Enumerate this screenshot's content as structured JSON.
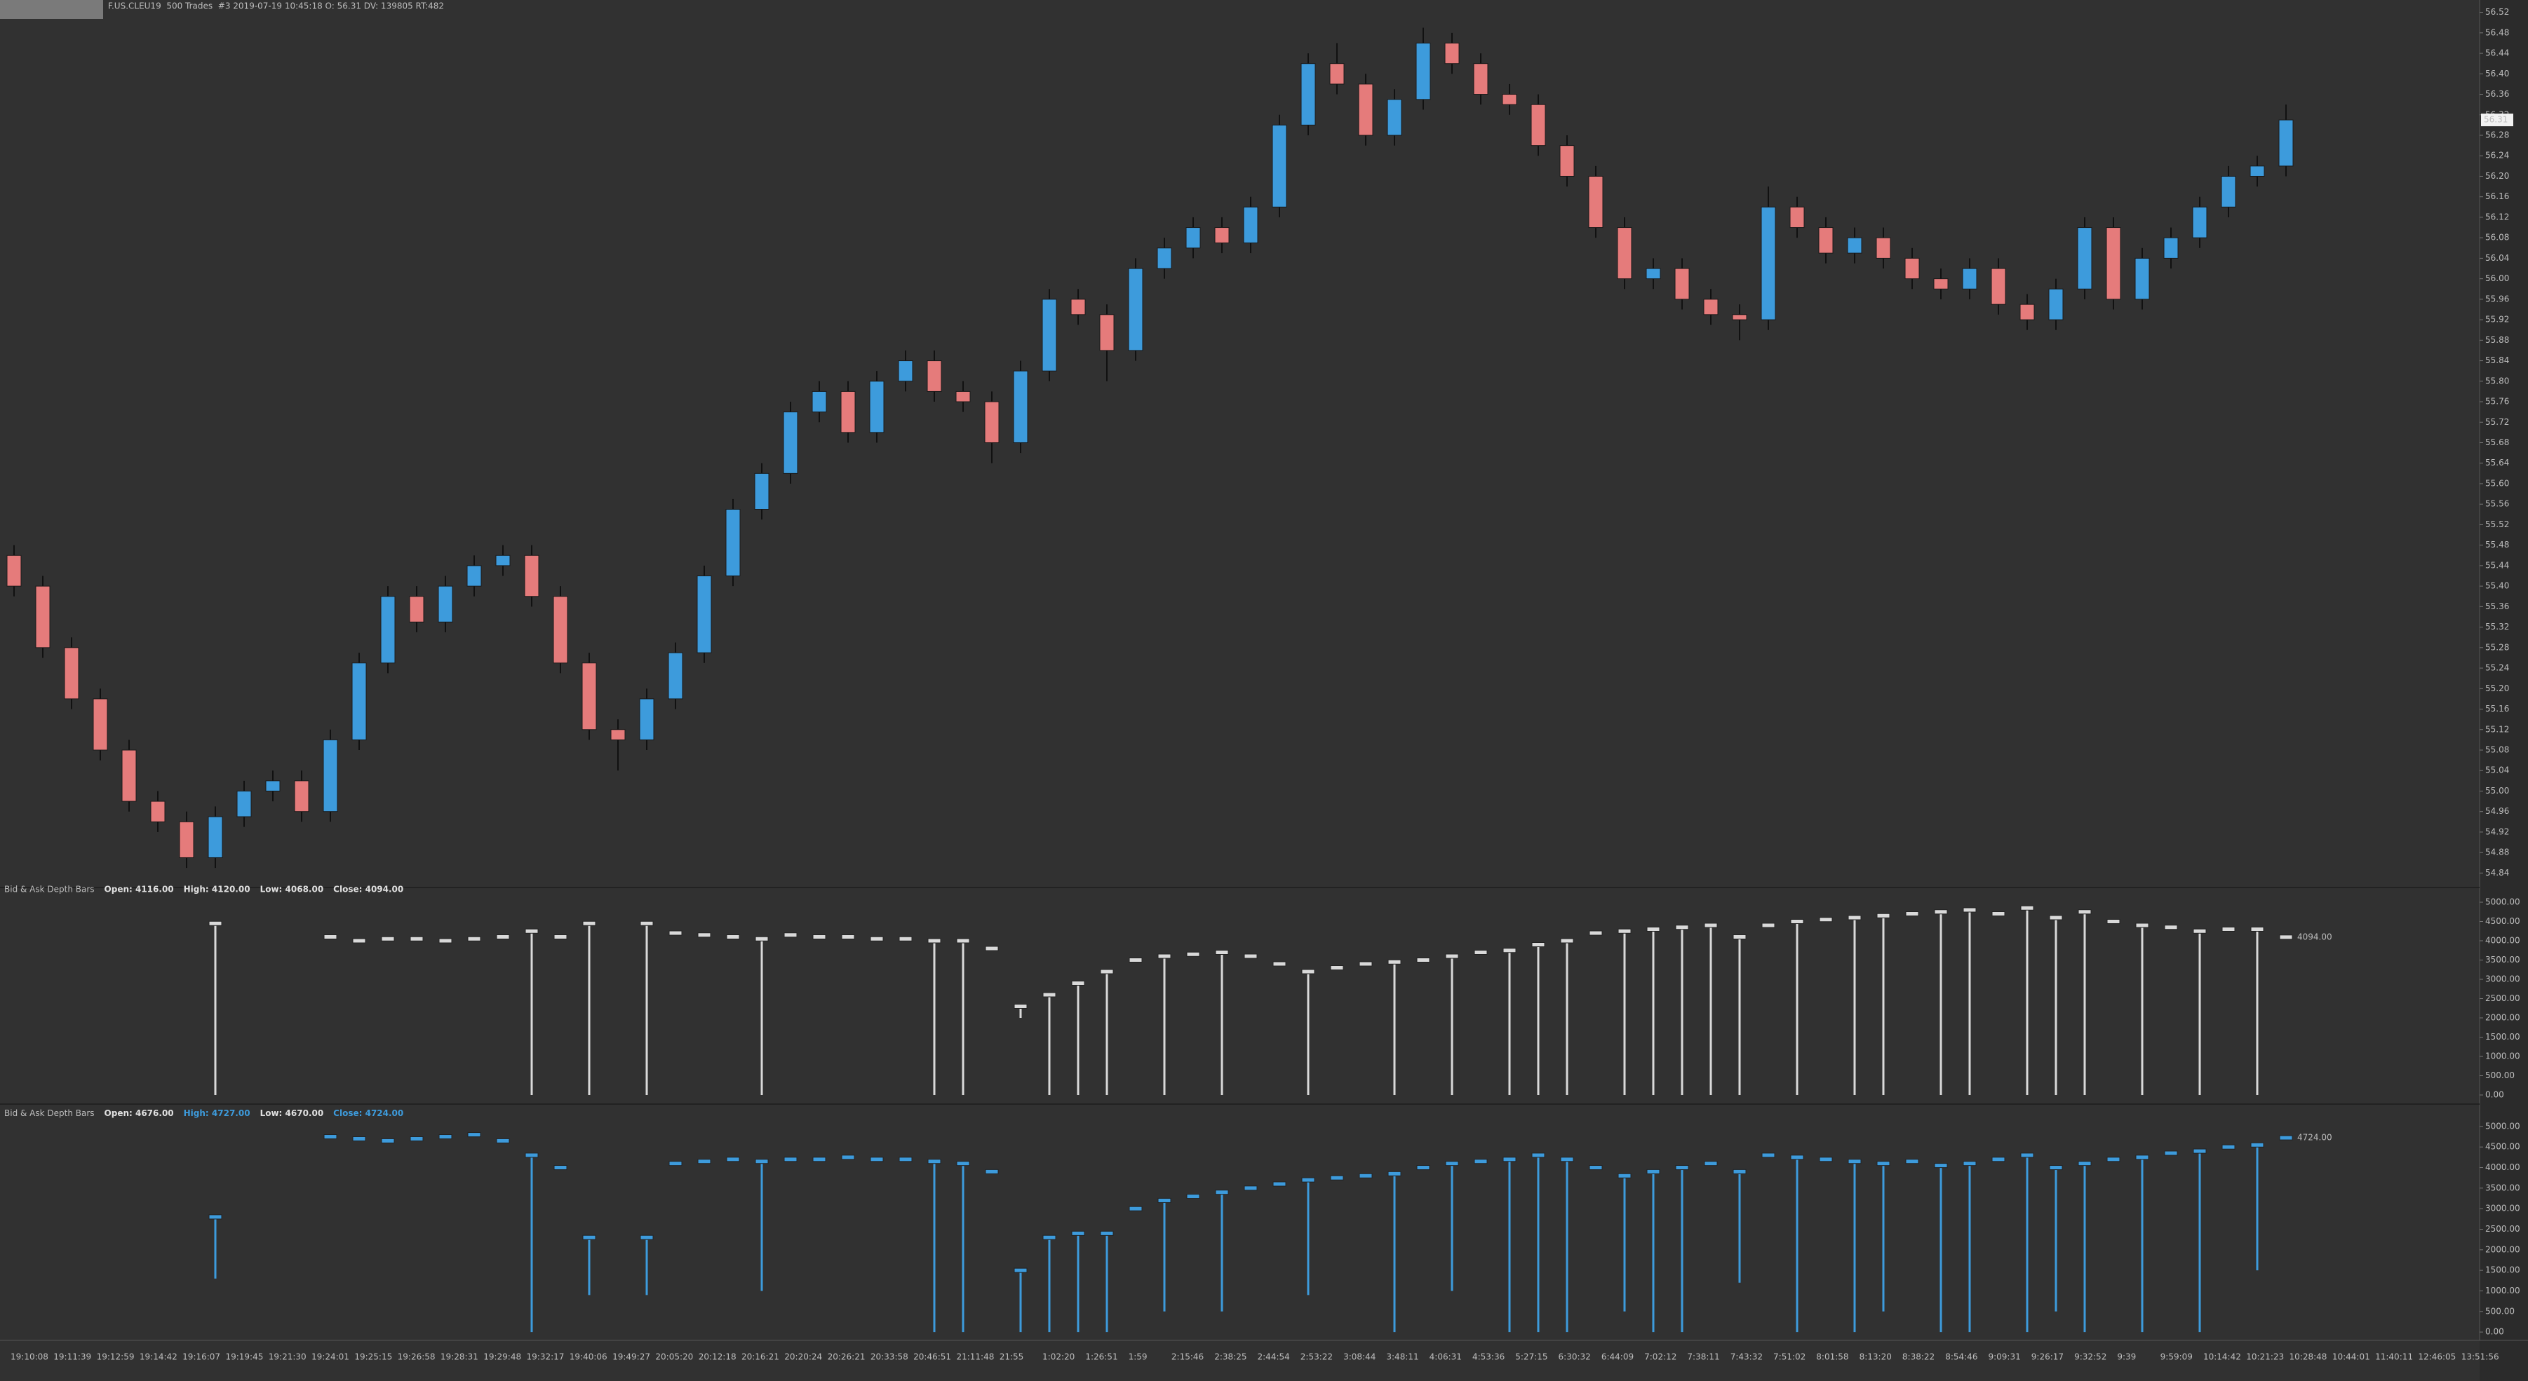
{
  "chart_data": [
    {
      "type": "candlestick",
      "title": "F.US.CLEU19  500 Trades  #3 2019-07-19 10:45:18 O: 56.31 DV: 139805 RT:482",
      "up_color": "#3d9bdc",
      "down_color": "#e57b7b",
      "last_label": "56.31",
      "ylim": [
        54.82,
        56.54
      ],
      "yticks": [
        54.84,
        54.88,
        54.92,
        54.96,
        {
          "value": 55,
          "label": "55.00"
        },
        55.04,
        55.08,
        55.12,
        55.16,
        {
          "value": 55.2,
          "label": "55.20"
        },
        55.24,
        55.28,
        55.32,
        55.36,
        {
          "value": 55.4,
          "label": "55.40"
        },
        55.44,
        55.48,
        55.52,
        55.56,
        {
          "value": 55.6,
          "label": "55.60"
        },
        55.64,
        55.68,
        55.72,
        55.76,
        {
          "value": 55.8,
          "label": "55.80"
        },
        55.84,
        55.88,
        55.92,
        55.96,
        {
          "value": 56,
          "label": "56.00"
        },
        56.04,
        56.08,
        56.12,
        56.16,
        {
          "value": 56.2,
          "label": "56.20"
        },
        56.24,
        56.28,
        56.32,
        56.36,
        {
          "value": 56.4,
          "label": "56.40"
        },
        56.44,
        56.48,
        56.52
      ],
      "open": [
        55.46,
        55.4,
        55.28,
        55.18,
        55.08,
        54.98,
        54.94,
        54.87,
        54.95,
        55.0,
        55.02,
        54.96,
        55.1,
        55.25,
        55.38,
        55.33,
        55.4,
        55.44,
        55.46,
        55.38,
        55.25,
        55.12,
        55.1,
        55.18,
        55.27,
        55.42,
        55.55,
        55.62,
        55.74,
        55.78,
        55.7,
        55.8,
        55.84,
        55.78,
        55.76,
        55.68,
        55.82,
        55.96,
        55.93,
        55.86,
        56.02,
        56.06,
        56.1,
        56.07,
        56.14,
        56.3,
        56.42,
        56.38,
        56.28,
        56.35,
        56.46,
        56.42,
        56.36,
        56.34,
        56.26,
        56.2,
        56.1,
        56.0,
        56.02,
        55.96,
        55.93,
        55.92,
        56.14,
        56.1,
        56.05,
        56.08,
        56.04,
        56.0,
        55.98,
        56.02,
        55.95,
        55.92,
        55.98,
        56.1,
        55.96,
        56.04,
        56.08,
        56.14,
        56.2,
        56.22
      ],
      "high": [
        55.48,
        55.42,
        55.3,
        55.2,
        55.1,
        55.0,
        54.96,
        54.97,
        55.02,
        55.04,
        55.04,
        55.12,
        55.27,
        55.4,
        55.4,
        55.42,
        55.46,
        55.48,
        55.48,
        55.4,
        55.27,
        55.14,
        55.2,
        55.29,
        55.44,
        55.57,
        55.64,
        55.76,
        55.8,
        55.8,
        55.82,
        55.86,
        55.86,
        55.8,
        55.78,
        55.84,
        55.98,
        55.98,
        55.95,
        56.04,
        56.08,
        56.12,
        56.12,
        56.16,
        56.32,
        56.44,
        56.46,
        56.4,
        56.37,
        56.49,
        56.48,
        56.44,
        56.38,
        56.36,
        56.28,
        56.22,
        56.12,
        56.04,
        56.04,
        55.98,
        55.95,
        56.18,
        56.16,
        56.12,
        56.1,
        56.1,
        56.06,
        56.02,
        56.04,
        56.04,
        55.97,
        56.0,
        56.12,
        56.12,
        56.06,
        56.1,
        56.16,
        56.22,
        56.24,
        56.34
      ],
      "low": [
        55.38,
        55.26,
        55.16,
        55.06,
        54.96,
        54.92,
        54.85,
        54.85,
        54.93,
        54.98,
        54.94,
        54.94,
        55.08,
        55.23,
        55.31,
        55.31,
        55.38,
        55.42,
        55.36,
        55.23,
        55.1,
        55.04,
        55.08,
        55.16,
        55.25,
        55.4,
        55.53,
        55.6,
        55.72,
        55.68,
        55.68,
        55.78,
        55.76,
        55.74,
        55.64,
        55.66,
        55.8,
        55.91,
        55.8,
        55.84,
        56.0,
        56.04,
        56.05,
        56.05,
        56.12,
        56.28,
        56.36,
        56.26,
        56.26,
        56.33,
        56.4,
        56.34,
        56.32,
        56.24,
        56.18,
        56.08,
        55.98,
        55.98,
        55.94,
        55.91,
        55.88,
        55.9,
        56.08,
        56.03,
        56.03,
        56.02,
        55.98,
        55.96,
        55.96,
        55.93,
        55.9,
        55.9,
        55.96,
        55.94,
        55.94,
        56.02,
        56.06,
        56.12,
        56.18,
        56.2
      ],
      "close": [
        55.4,
        55.28,
        55.18,
        55.08,
        54.98,
        54.94,
        54.87,
        54.95,
        55.0,
        55.02,
        54.96,
        55.1,
        55.25,
        55.38,
        55.33,
        55.4,
        55.44,
        55.46,
        55.38,
        55.25,
        55.12,
        55.1,
        55.18,
        55.27,
        55.42,
        55.55,
        55.62,
        55.74,
        55.78,
        55.7,
        55.8,
        55.84,
        55.78,
        55.76,
        55.68,
        55.82,
        55.96,
        55.93,
        55.86,
        56.02,
        56.06,
        56.1,
        56.07,
        56.14,
        56.3,
        56.42,
        56.38,
        56.28,
        56.35,
        56.46,
        56.42,
        56.36,
        56.34,
        56.26,
        56.2,
        56.1,
        56.0,
        56.02,
        55.96,
        55.93,
        55.92,
        56.14,
        56.1,
        56.05,
        56.08,
        56.04,
        56.0,
        55.98,
        56.02,
        55.95,
        55.92,
        55.98,
        56.1,
        55.96,
        56.04,
        56.08,
        56.14,
        56.2,
        56.22,
        56.31
      ],
      "time_labels": [
        "19:10:08",
        "19:11:39",
        "19:12:59",
        "19:14:42",
        "19:16:07",
        "19:19:45",
        "19:21:30",
        "19:24:01",
        "19:25:15",
        "19:26:58",
        "19:28:31",
        "19:29:48",
        "19:32:17",
        "19:40:06",
        "19:49:27",
        "20:05:20",
        "20:12:18",
        "20:16:21",
        "20:20:24",
        "20:26:21",
        "20:33:58",
        "20:46:51",
        "21:11:48",
        "21:55",
        "1:02:20",
        "1:26:51",
        "1:59",
        "2:15:46",
        "2:38:25",
        "2:44:54",
        "2:53:22",
        "3:08:44",
        "3:48:11",
        "4:06:31",
        "4:53:36",
        "5:27:15",
        "6:30:32",
        "6:44:09",
        "7:02:12",
        "7:38:11",
        "7:43:32",
        "7:51:02",
        "8:01:58",
        "8:13:20",
        "8:38:22",
        "8:54:46",
        "9:09:31",
        "9:26:17",
        "9:32:52",
        "9:39",
        "9:59:09",
        "10:14:42",
        "10:21:23",
        "10:28:48",
        "10:44:01",
        "11:40:11",
        "12:46:05",
        "13:51:56"
      ]
    },
    {
      "type": "depth",
      "title": "Bid & Ask Depth Bars",
      "ohlc_labels": [
        "Open: 4116.00",
        "High: 4120.00",
        "Low: 4068.00",
        "Close: 4094.00"
      ],
      "color": "#d9d9d9",
      "last_label": "4094.00",
      "ylim": [
        -100,
        5100
      ],
      "yticks": [
        {
          "value": 0,
          "label": "0.00"
        },
        {
          "value": 500,
          "label": "500.00"
        },
        {
          "value": 1000,
          "label": "1000.00"
        },
        {
          "value": 1500,
          "label": "1500.00"
        },
        {
          "value": 2000,
          "label": "2000.00"
        },
        {
          "value": 2500,
          "label": "2500.00"
        },
        {
          "value": 3000,
          "label": "3000.00"
        },
        {
          "value": 3500,
          "label": "3500.00"
        },
        {
          "value": 4000,
          "label": "4000.00"
        },
        {
          "value": 4500,
          "label": "4500.00"
        },
        {
          "value": 5000,
          "label": "5000.00"
        }
      ],
      "values": [
        null,
        null,
        null,
        null,
        null,
        null,
        null,
        4450,
        null,
        null,
        null,
        4100,
        4000,
        4050,
        4050,
        4000,
        4050,
        4100,
        4250,
        4100,
        4450,
        null,
        4450,
        4200,
        4150,
        4100,
        4050,
        4150,
        4100,
        4100,
        4050,
        4050,
        4000,
        4000,
        3800,
        2300,
        2600,
        2900,
        3200,
        3500,
        3600,
        3650,
        3700,
        3600,
        3400,
        3200,
        3300,
        3400,
        3450,
        3500,
        3600,
        3700,
        3750,
        3900,
        4000,
        4200,
        4250,
        4300,
        4350,
        4400,
        4100,
        4400,
        4500,
        4550,
        4600,
        4650,
        4700,
        4750,
        4800,
        4700,
        4850,
        4600,
        4750,
        4500,
        4400,
        4350,
        4250,
        4300,
        4300,
        4094
      ],
      "lows": [
        null,
        null,
        null,
        null,
        null,
        null,
        null,
        0,
        null,
        null,
        null,
        4100,
        4000,
        4050,
        4050,
        4000,
        4050,
        4100,
        0,
        4100,
        0,
        null,
        0,
        4200,
        4150,
        4100,
        0,
        4150,
        4100,
        4100,
        4050,
        4050,
        0,
        0,
        3800,
        2000,
        0,
        0,
        0,
        3500,
        0,
        3650,
        0,
        3600,
        3400,
        0,
        3300,
        3400,
        0,
        3500,
        0,
        3700,
        0,
        0,
        0,
        4200,
        0,
        0,
        0,
        0,
        0,
        4400,
        0,
        4550,
        0,
        0,
        4700,
        0,
        0,
        4700,
        0,
        0,
        0,
        4500,
        0,
        4350,
        0,
        4300,
        0,
        4094
      ]
    },
    {
      "type": "depth",
      "title": "Bid & Ask Depth Bars",
      "ohlc_labels": [
        "Open: 4676.00",
        "High: 4727.00",
        "Low: 4670.00",
        "Close: 4724.00"
      ],
      "color": "#3d9bdc",
      "last_label": "4724.00",
      "ylim": [
        -100,
        5100
      ],
      "yticks": [
        {
          "value": 0,
          "label": "0.00"
        },
        {
          "value": 500,
          "label": "500.00"
        },
        {
          "value": 1000,
          "label": "1000.00"
        },
        {
          "value": 1500,
          "label": "1500.00"
        },
        {
          "value": 2000,
          "label": "2000.00"
        },
        {
          "value": 2500,
          "label": "2500.00"
        },
        {
          "value": 3000,
          "label": "3000.00"
        },
        {
          "value": 3500,
          "label": "3500.00"
        },
        {
          "value": 4000,
          "label": "4000.00"
        },
        {
          "value": 4500,
          "label": "4500.00"
        },
        {
          "value": 5000,
          "label": "5000.00"
        }
      ],
      "values": [
        null,
        null,
        null,
        null,
        null,
        null,
        null,
        2800,
        null,
        null,
        null,
        4750,
        4700,
        4650,
        4700,
        4750,
        4800,
        4650,
        4300,
        4000,
        2300,
        null,
        2300,
        4100,
        4150,
        4200,
        4150,
        4200,
        4200,
        4250,
        4200,
        4200,
        4150,
        4100,
        3900,
        1500,
        2300,
        2400,
        2400,
        3000,
        3200,
        3300,
        3400,
        3500,
        3600,
        3700,
        3750,
        3800,
        3850,
        4000,
        4100,
        4150,
        4200,
        4300,
        4200,
        4000,
        3800,
        3900,
        4000,
        4100,
        3900,
        4300,
        4250,
        4200,
        4150,
        4100,
        4150,
        4050,
        4100,
        4200,
        4300,
        4000,
        4100,
        4200,
        4250,
        4350,
        4400,
        4500,
        4550,
        4724
      ],
      "lows": [
        null,
        null,
        null,
        null,
        null,
        null,
        null,
        1300,
        null,
        null,
        null,
        4750,
        4700,
        4650,
        4700,
        4750,
        4800,
        4650,
        0,
        4000,
        900,
        null,
        900,
        4100,
        4150,
        4200,
        1000,
        4200,
        4200,
        4250,
        4200,
        4200,
        0,
        0,
        3900,
        0,
        0,
        0,
        0,
        3000,
        500,
        3300,
        500,
        3500,
        3600,
        900,
        3750,
        3800,
        0,
        4000,
        1000,
        4150,
        0,
        0,
        0,
        4000,
        500,
        0,
        0,
        4100,
        1200,
        4300,
        0,
        4200,
        0,
        500,
        4150,
        0,
        0,
        4200,
        0,
        500,
        0,
        4200,
        0,
        4350,
        0,
        4500,
        1500,
        4724
      ]
    }
  ]
}
